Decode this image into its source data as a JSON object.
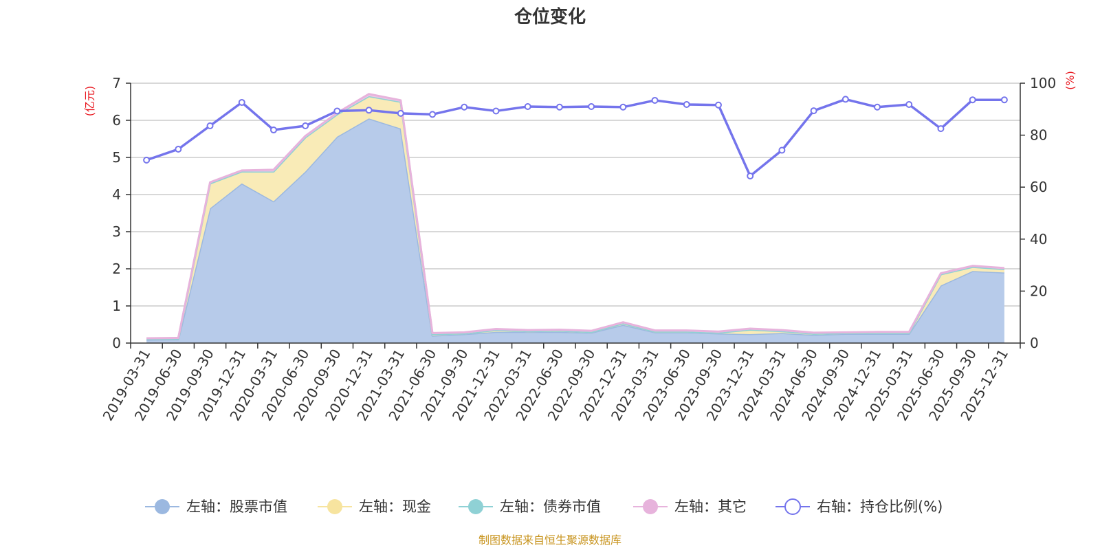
{
  "chart_data": {
    "type": "area",
    "title": "仓位变化",
    "left_axis_unit": "(亿元)",
    "right_axis_unit": "(%)",
    "left_ylim": [
      0,
      7
    ],
    "left_yticks": [
      "0",
      "1",
      "2",
      "3",
      "4",
      "5",
      "6",
      "7"
    ],
    "right_ylim": [
      0,
      100
    ],
    "right_yticks": [
      "0",
      "20",
      "40",
      "60",
      "80",
      "100"
    ],
    "categories": [
      "2019-03-31",
      "2019-06-30",
      "2019-09-30",
      "2019-12-31",
      "2020-03-31",
      "2020-06-30",
      "2020-09-30",
      "2020-12-31",
      "2021-03-31",
      "2021-06-30",
      "2021-09-30",
      "2021-12-31",
      "2022-03-31",
      "2022-06-30",
      "2022-09-30",
      "2022-12-31",
      "2023-03-31",
      "2023-06-30",
      "2023-09-30",
      "2023-12-31",
      "2024-03-31",
      "2024-06-30",
      "2024-09-30",
      "2024-12-31",
      "2025-03-31",
      "2025-06-30",
      "2025-09-30",
      "2025-12-31"
    ],
    "series": [
      {
        "name": "左轴：股票市值",
        "axis": "left",
        "color": "#9bb8e0",
        "fill": "#b7cbea",
        "values": [
          0.09,
          0.1,
          3.63,
          4.3,
          3.82,
          4.62,
          5.56,
          6.05,
          5.78,
          0.2,
          0.24,
          0.3,
          0.3,
          0.3,
          0.28,
          0.49,
          0.29,
          0.29,
          0.26,
          0.24,
          0.27,
          0.22,
          0.25,
          0.25,
          0.25,
          1.55,
          1.94,
          1.9
        ]
      },
      {
        "name": "左轴：现金",
        "axis": "left",
        "color": "#f7e49f",
        "fill": "#f9ebb7",
        "values": [
          0.02,
          0.02,
          0.67,
          0.32,
          0.8,
          0.92,
          0.6,
          0.6,
          0.72,
          0.04,
          0.02,
          0.05,
          0.02,
          0.03,
          0.02,
          0.04,
          0.02,
          0.02,
          0.02,
          0.12,
          0.05,
          0.03,
          0.02,
          0.02,
          0.02,
          0.3,
          0.11,
          0.09
        ]
      },
      {
        "name": "左轴：债券市值",
        "axis": "left",
        "color": "#8fd1d5",
        "fill": "#a5dade",
        "values": [
          0,
          0,
          0,
          0,
          0,
          0,
          0,
          0,
          0,
          0,
          0,
          0,
          0,
          0,
          0,
          0,
          0,
          0,
          0,
          0,
          0,
          0,
          0,
          0,
          0,
          0,
          0,
          0
        ]
      },
      {
        "name": "左轴：其它",
        "axis": "left",
        "color": "#e7b3dc",
        "fill": "#efc8e6",
        "values": [
          0.02,
          0.02,
          0.03,
          0.03,
          0.05,
          0.04,
          0.04,
          0.06,
          0.04,
          0.03,
          0.03,
          0.03,
          0.03,
          0.03,
          0.03,
          0.03,
          0.03,
          0.03,
          0.03,
          0.03,
          0.03,
          0.03,
          0.02,
          0.03,
          0.03,
          0.03,
          0.03,
          0.03
        ]
      },
      {
        "name": "右轴：持仓比例(%)",
        "axis": "right",
        "color": "#7474ec",
        "values": [
          70.4,
          74.6,
          83.6,
          92.6,
          82.0,
          83.6,
          89.3,
          89.6,
          88.4,
          88.0,
          90.8,
          89.3,
          91.0,
          90.8,
          91.0,
          90.8,
          93.4,
          91.8,
          91.6,
          64.3,
          74.2,
          89.4,
          93.8,
          90.8,
          91.8,
          82.5,
          93.6,
          93.6
        ]
      }
    ]
  },
  "source_text": "制图数据来自恒生聚源数据库"
}
